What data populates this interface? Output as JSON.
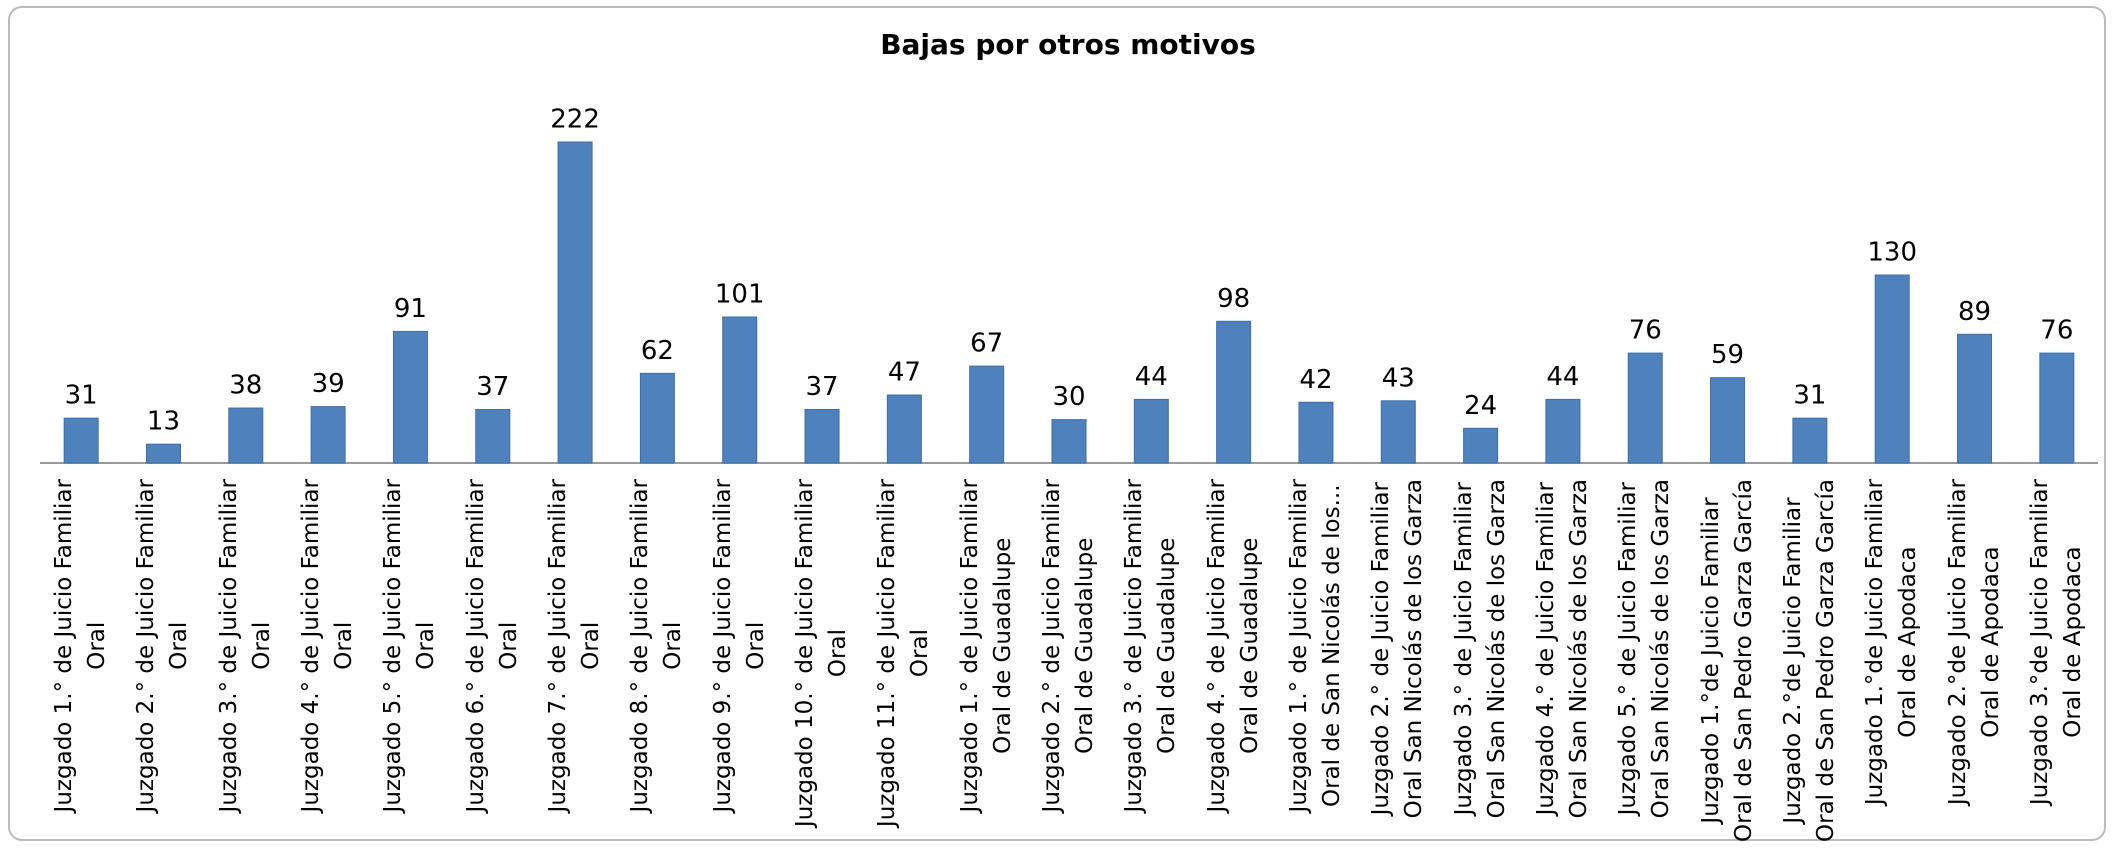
{
  "chart_data": {
    "type": "bar",
    "title": "Bajas por otros motivos",
    "color": "#4f81bd",
    "categories": [
      "Juzgado 1.° de Juicio Familiar\nOral",
      "Juzgado 2.° de Juicio Familiar\nOral",
      "Juzgado 3.° de Juicio Familiar\nOral",
      "Juzgado 4.° de Juicio Familiar\nOral",
      "Juzgado 5.° de Juicio Familiar\nOral",
      "Juzgado 6.° de Juicio Familiar\nOral",
      "Juzgado 7.° de Juicio Familiar\nOral",
      "Juzgado 8.° de Juicio Familiar\nOral",
      "Juzgado 9.° de Juicio Familiar\nOral",
      "Juzgado 10.° de Juicio Familiar\nOral",
      "Juzgado 11.° de Juicio Familiar\nOral",
      "Juzgado 1.° de Juicio Familiar\nOral de Guadalupe",
      "Juzgado 2.° de Juicio Familiar\nOral de Guadalupe",
      "Juzgado 3.° de Juicio Familiar\nOral de Guadalupe",
      "Juzgado 4.° de Juicio Familiar\nOral de Guadalupe",
      "Juzgado 1.° de Juicio Familiar\nOral de San Nicolás de los...",
      "Juzgado 2.° de Juicio Familiar\nOral San Nicolás de los Garza",
      "Juzgado 3.° de Juicio Familiar\nOral San Nicolás de los Garza",
      "Juzgado 4.° de Juicio Familiar\nOral San Nicolás de los Garza",
      "Juzgado 5.° de Juicio Familiar\nOral San Nicolás de los Garza",
      "Juzgado 1.°de Juicio Familiar\nOral de San Pedro Garza García",
      "Juzgado 2.°de Juicio Familiar\nOral de San Pedro Garza García",
      "Juzgado 1.°de Juicio Familiar\nOral de Apodaca",
      "Juzgado 2.°de Juicio Familiar\nOral de Apodaca",
      "Juzgado 3.°de Juicio Familiar\nOral de Apodaca"
    ],
    "values": [
      31,
      13,
      38,
      39,
      91,
      37,
      222,
      62,
      101,
      37,
      47,
      67,
      30,
      44,
      98,
      42,
      43,
      24,
      44,
      76,
      59,
      31,
      130,
      89,
      76
    ]
  }
}
